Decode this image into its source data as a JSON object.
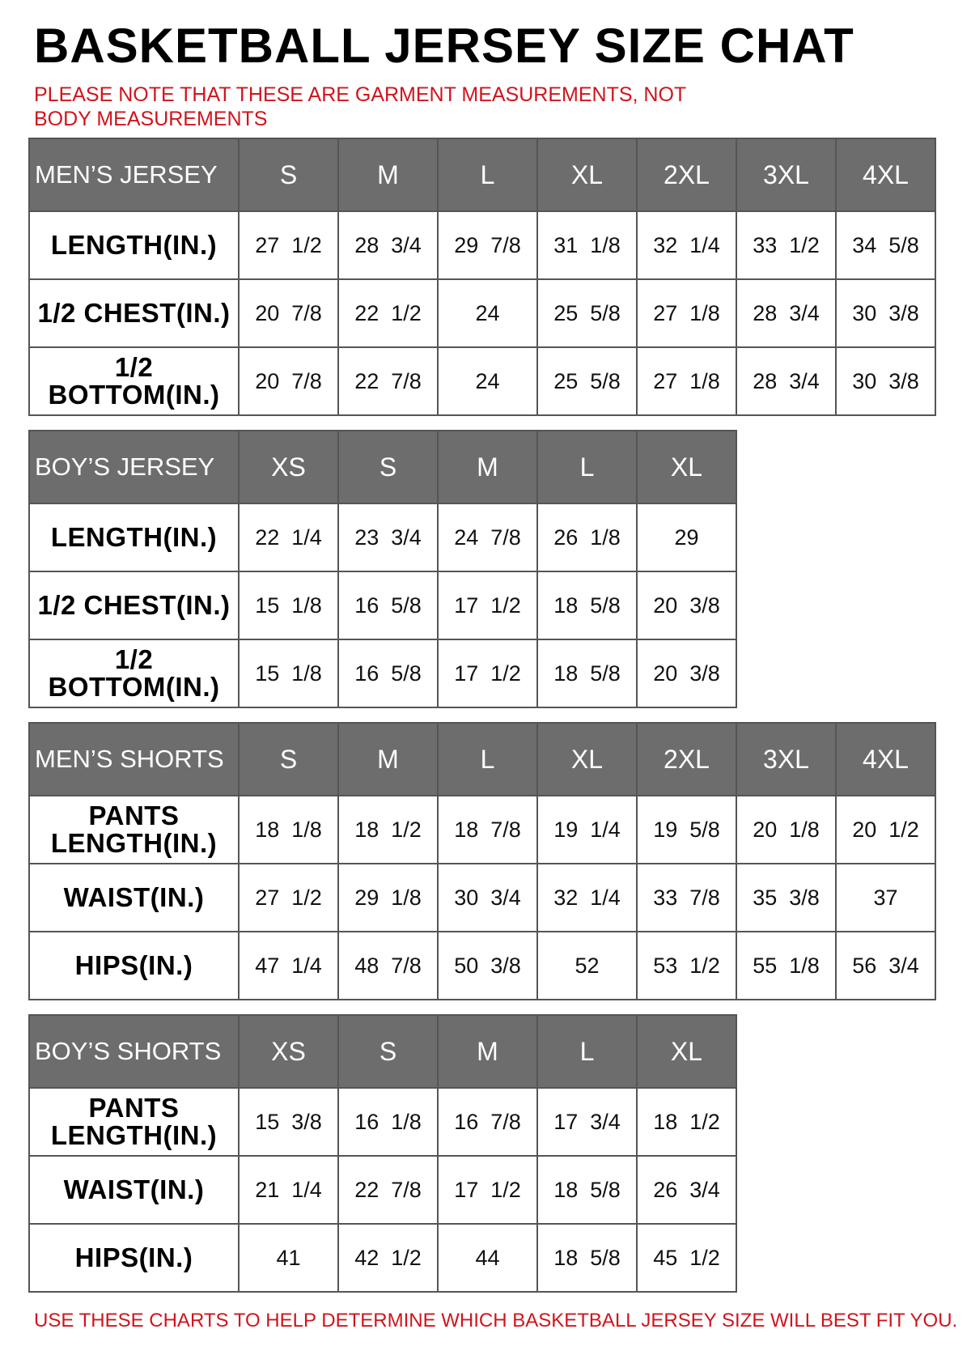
{
  "title": "BASKETBALL JERSEY SIZE CHAT",
  "note": "PLEASE NOTE THAT THESE ARE GARMENT MEASUREMENTS, NOT BODY MEASUREMENTS",
  "footer": "USE THESE CHARTS TO HELP DETERMINE WHICH BASKETBALL JERSEY SIZE WILL BEST FIT YOU.",
  "colors": {
    "header_bg": "#6d6d6d",
    "note_red": "#d0141c",
    "border": "#555555"
  },
  "tables": [
    {
      "name": "mens-jersey",
      "header": "MEN’S JERSEY",
      "sizes": [
        "S",
        "M",
        "L",
        "XL",
        "2XL",
        "3XL",
        "4XL"
      ],
      "rows": [
        {
          "label": "LENGTH(IN.)",
          "values": [
            "27  1/2",
            "28  3/4",
            "29  7/8",
            "31  1/8",
            "32  1/4",
            "33  1/2",
            "34  5/8"
          ]
        },
        {
          "label": "1/2  CHEST(IN.)",
          "values": [
            "20  7/8",
            "22  1/2",
            "24",
            "25  5/8",
            "27  1/8",
            "28  3/4",
            "30  3/8"
          ]
        },
        {
          "label": "1/2  BOTTOM(IN.)",
          "values": [
            "20  7/8",
            "22  7/8",
            "24",
            "25  5/8",
            "27  1/8",
            "28  3/4",
            "30  3/8"
          ]
        }
      ]
    },
    {
      "name": "boys-jersey",
      "header": "BOY’S JERSEY",
      "sizes": [
        "XS",
        "S",
        "M",
        "L",
        "XL"
      ],
      "rows": [
        {
          "label": "LENGTH(IN.)",
          "values": [
            "22  1/4",
            "23  3/4",
            "24  7/8",
            "26  1/8",
            "29"
          ]
        },
        {
          "label": "1/2  CHEST(IN.)",
          "values": [
            "15  1/8",
            "16  5/8",
            "17  1/2",
            "18  5/8",
            "20  3/8"
          ]
        },
        {
          "label": "1/2  BOTTOM(IN.)",
          "values": [
            "15  1/8",
            "16  5/8",
            "17  1/2",
            "18  5/8",
            "20  3/8"
          ]
        }
      ]
    },
    {
      "name": "mens-shorts",
      "header": "MEN’S SHORTS",
      "sizes": [
        "S",
        "M",
        "L",
        "XL",
        "2XL",
        "3XL",
        "4XL"
      ],
      "rows": [
        {
          "label": "PANTS\nLENGTH(IN.)",
          "values": [
            "18  1/8",
            "18  1/2",
            "18  7/8",
            "19  1/4",
            "19  5/8",
            "20  1/8",
            "20  1/2"
          ]
        },
        {
          "label": "WAIST(IN.)",
          "values": [
            "27  1/2",
            "29  1/8",
            "30  3/4",
            "32  1/4",
            "33  7/8",
            "35  3/8",
            "37"
          ]
        },
        {
          "label": "HIPS(IN.)",
          "values": [
            "47  1/4",
            "48  7/8",
            "50  3/8",
            "52",
            "53  1/2",
            "55  1/8",
            "56  3/4"
          ]
        }
      ]
    },
    {
      "name": "boys-shorts",
      "header": "BOY’S SHORTS",
      "sizes": [
        "XS",
        "S",
        "M",
        "L",
        "XL"
      ],
      "rows": [
        {
          "label": "PANTS\nLENGTH(IN.)",
          "values": [
            "15  3/8",
            "16  1/8",
            "16  7/8",
            "17  3/4",
            "18  1/2"
          ]
        },
        {
          "label": "WAIST(IN.)",
          "values": [
            "21  1/4",
            "22  7/8",
            "17  1/2",
            "18  5/8",
            "26  3/4"
          ]
        },
        {
          "label": "HIPS(IN.)",
          "values": [
            "41",
            "42  1/2",
            "44",
            "18  5/8",
            "45  1/2"
          ]
        }
      ]
    }
  ]
}
